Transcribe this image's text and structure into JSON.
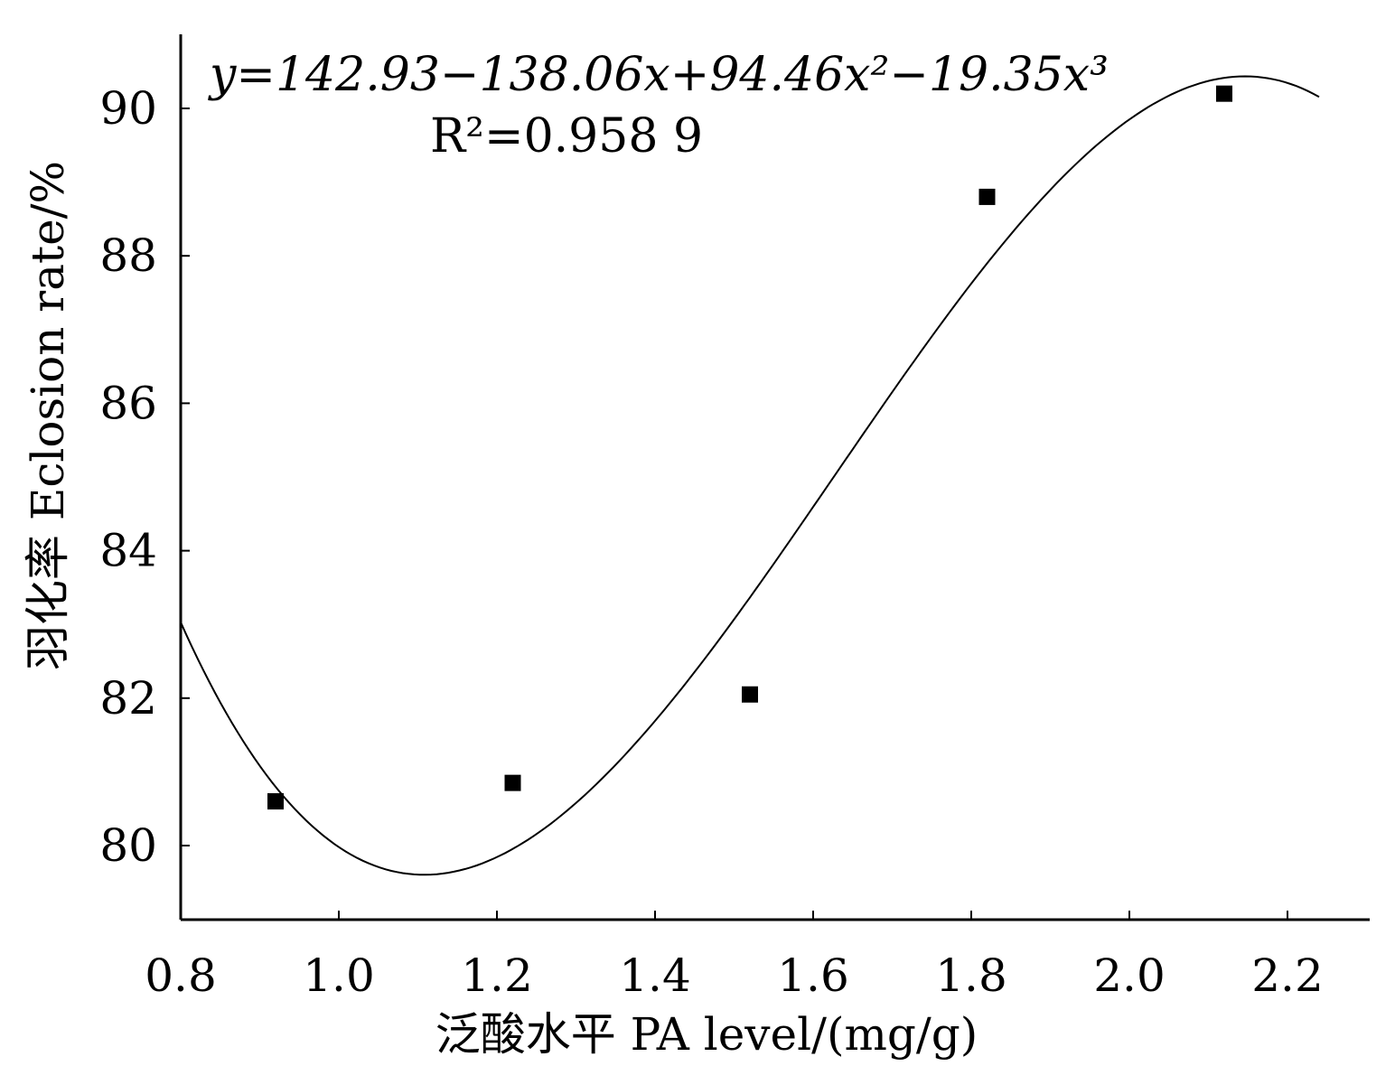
{
  "chart_data": {
    "type": "scatter",
    "xlabel": "泛酸水平  PA level/(mg/g)",
    "ylabel": "羽化率  Eclosion rate/%",
    "xlim": [
      0.8,
      2.3
    ],
    "ylim": [
      79,
      91
    ],
    "x_ticks": [
      "0.8",
      "1.0",
      "1.2",
      "1.4",
      "1.6",
      "1.8",
      "2.0",
      "2.2"
    ],
    "y_ticks": [
      "80",
      "82",
      "84",
      "86",
      "88",
      "90"
    ],
    "grid": false,
    "points": [
      {
        "x": 0.92,
        "y": 80.6
      },
      {
        "x": 1.22,
        "y": 80.85
      },
      {
        "x": 1.52,
        "y": 82.05
      },
      {
        "x": 1.82,
        "y": 88.8
      },
      {
        "x": 2.12,
        "y": 90.2
      }
    ],
    "fit": {
      "equation": "y=142.93−138.06x+94.46x²−19.35x³",
      "r_squared_text": "R²=0.958 9",
      "coefficients": [
        142.93,
        -138.06,
        94.46,
        -19.35
      ],
      "x_range": [
        0.8,
        2.24
      ]
    }
  }
}
